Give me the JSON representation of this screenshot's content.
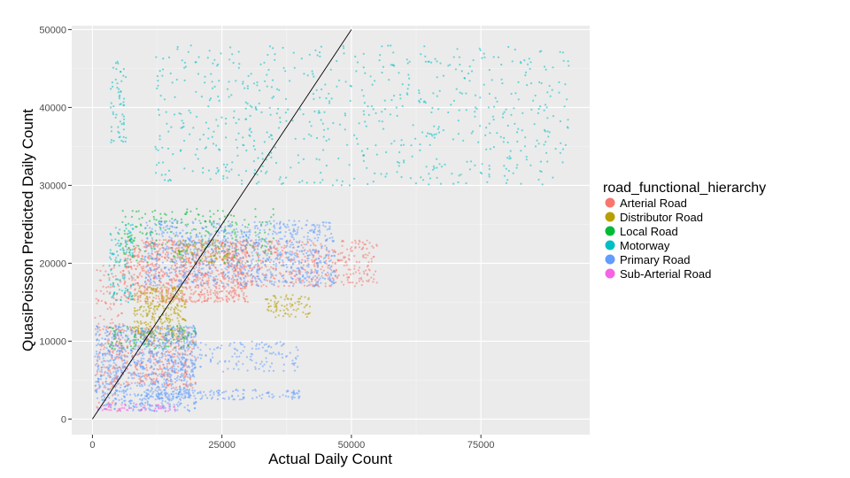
{
  "chart_data": {
    "type": "scatter",
    "xlabel": "Actual Daily Count",
    "ylabel": "QuasiPoisson Predicted Daily Count",
    "xlim": [
      -4000,
      96000
    ],
    "ylim": [
      -2000,
      50500
    ],
    "x_ticks": [
      0,
      25000,
      50000,
      75000
    ],
    "y_ticks": [
      0,
      10000,
      20000,
      30000,
      40000,
      50000
    ],
    "x_tick_labels": [
      "0",
      "25000",
      "50000",
      "75000"
    ],
    "y_tick_labels": [
      "0",
      "10000",
      "20000",
      "30000",
      "40000",
      "50000"
    ],
    "grid": true,
    "legend_title": "road_functional_hierarchy",
    "legend_position": "right",
    "reference_line": {
      "from": [
        0,
        0
      ],
      "to": [
        50000,
        50000
      ]
    },
    "series": [
      {
        "name": "Arterial Road",
        "color": "#F8766D",
        "clusters": [
          {
            "x": [
              6000,
              30000
            ],
            "y": [
              15000,
              23000
            ],
            "n": 900
          },
          {
            "x": [
              25000,
              55000
            ],
            "y": [
              17000,
              23000
            ],
            "n": 500
          },
          {
            "x": [
              3000,
              20000
            ],
            "y": [
              4000,
              12000
            ],
            "n": 400
          },
          {
            "x": [
              500,
              6000
            ],
            "y": [
              1000,
              20000
            ],
            "n": 150
          }
        ]
      },
      {
        "name": "Distributor Road",
        "color": "#B79F00",
        "clusters": [
          {
            "x": [
              8000,
              18000
            ],
            "y": [
              10000,
              17000
            ],
            "n": 300
          },
          {
            "x": [
              33000,
              42000
            ],
            "y": [
              13000,
              16000
            ],
            "n": 80
          },
          {
            "x": [
              16000,
              27000
            ],
            "y": [
              20000,
              23000
            ],
            "n": 80
          }
        ]
      },
      {
        "name": "Local Road",
        "color": "#00BA38",
        "clusters": [
          {
            "x": [
              5000,
              35000
            ],
            "y": [
              20000,
              27000
            ],
            "n": 250
          },
          {
            "x": [
              3000,
              20000
            ],
            "y": [
              9000,
              12000
            ],
            "n": 120
          }
        ]
      },
      {
        "name": "Motorway",
        "color": "#00BFC4",
        "clusters": [
          {
            "x": [
              3000,
              8000
            ],
            "y": [
              15000,
              25000
            ],
            "n": 120
          },
          {
            "x": [
              3500,
              6500
            ],
            "y": [
              35000,
              46000
            ],
            "n": 60
          },
          {
            "x": [
              12000,
              92000
            ],
            "y": [
              30000,
              48000
            ],
            "n": 700
          }
        ]
      },
      {
        "name": "Primary Road",
        "color": "#619CFF",
        "clusters": [
          {
            "x": [
              500,
              20000
            ],
            "y": [
              1000,
              12000
            ],
            "n": 900
          },
          {
            "x": [
              10000,
              47000
            ],
            "y": [
              17000,
              25500
            ],
            "n": 900
          },
          {
            "x": [
              15000,
              40000
            ],
            "y": [
              6000,
              10000
            ],
            "n": 150
          },
          {
            "x": [
              10000,
              40000
            ],
            "y": [
              2500,
              3800
            ],
            "n": 150
          }
        ]
      },
      {
        "name": "Sub-Arterial Road",
        "color": "#F564E3",
        "clusters": [
          {
            "x": [
              1000,
              16000
            ],
            "y": [
              1000,
              2000
            ],
            "n": 60
          }
        ]
      }
    ]
  }
}
